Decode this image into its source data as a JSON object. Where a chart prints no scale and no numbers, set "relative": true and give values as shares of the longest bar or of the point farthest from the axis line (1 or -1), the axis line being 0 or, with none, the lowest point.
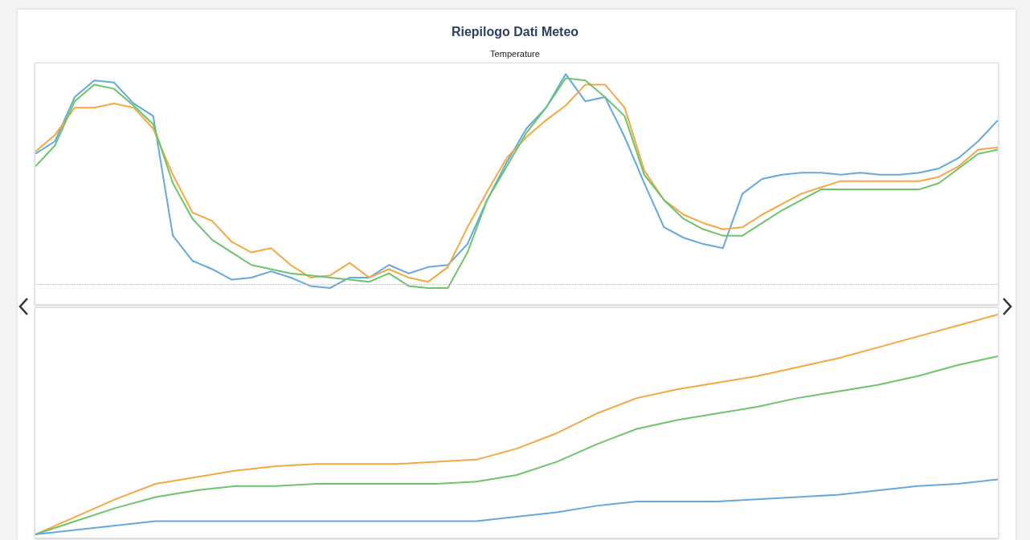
{
  "chart_data": [
    {
      "type": "line",
      "title": "Riepilogo Dati Meteo",
      "subtitle": "Temperature",
      "relative": true,
      "marker": "none",
      "line_style": "solid",
      "categories": [
        null,
        null,
        null,
        null,
        null,
        null,
        null,
        null,
        null,
        null,
        null,
        null,
        null,
        null,
        null,
        null,
        null,
        null,
        null,
        null,
        null,
        null,
        null,
        null,
        null,
        null,
        null,
        null,
        null,
        null,
        null,
        null,
        null,
        null,
        null,
        null,
        null,
        null,
        null,
        null,
        null,
        null,
        null,
        null,
        null,
        null,
        null,
        null,
        null,
        null
      ],
      "ref_lines": [
        {
          "axis": "y",
          "value": 0,
          "color": "#bbbbbb",
          "line_style": "dotted"
        }
      ],
      "series": [
        {
          "color": "#64a8e0",
          "values": [
            0.62,
            0.68,
            0.89,
            0.97,
            0.96,
            0.86,
            0.8,
            0.23,
            0.11,
            0.07,
            0.02,
            0.03,
            0.06,
            0.03,
            -0.01,
            -0.02,
            0.03,
            0.03,
            0.09,
            0.05,
            0.08,
            0.09,
            0.19,
            0.4,
            0.58,
            0.74,
            0.84,
            1,
            0.87,
            0.89,
            0.7,
            0.48,
            0.27,
            0.22,
            0.19,
            0.17,
            0.43,
            0.5,
            0.52,
            0.53,
            0.53,
            0.52,
            0.53,
            0.52,
            0.52,
            0.53,
            0.55,
            0.6,
            0.68,
            0.78
          ]
        },
        {
          "color": "#f5a742",
          "values": [
            0.63,
            0.71,
            0.84,
            0.84,
            0.86,
            0.84,
            0.74,
            0.52,
            0.34,
            0.3,
            0.2,
            0.15,
            0.17,
            0.09,
            0.03,
            0.04,
            0.1,
            0.03,
            0.07,
            0.03,
            0.01,
            0.08,
            0.27,
            0.44,
            0.6,
            0.7,
            0.78,
            0.85,
            0.95,
            0.95,
            0.84,
            0.54,
            0.4,
            0.33,
            0.29,
            0.26,
            0.27,
            0.33,
            0.38,
            0.43,
            0.46,
            0.49,
            0.49,
            0.49,
            0.49,
            0.49,
            0.51,
            0.56,
            0.64,
            0.65
          ]
        },
        {
          "color": "#6cc46c",
          "values": [
            0.56,
            0.66,
            0.87,
            0.95,
            0.93,
            0.85,
            0.76,
            0.48,
            0.31,
            0.21,
            0.15,
            0.09,
            0.07,
            0.05,
            0.04,
            0.03,
            0.02,
            0.01,
            0.05,
            -0.01,
            -0.02,
            -0.02,
            0.15,
            0.4,
            0.56,
            0.72,
            0.84,
            0.98,
            0.97,
            0.89,
            0.8,
            0.52,
            0.4,
            0.31,
            0.26,
            0.23,
            0.23,
            0.29,
            0.35,
            0.4,
            0.45,
            0.45,
            0.45,
            0.45,
            0.45,
            0.45,
            0.48,
            0.55,
            0.62,
            0.64
          ]
        }
      ]
    },
    {
      "type": "line",
      "relative": true,
      "marker": "none",
      "line_style": "solid",
      "categories": [
        null,
        null,
        null,
        null,
        null,
        null,
        null,
        null,
        null,
        null,
        null,
        null,
        null,
        null,
        null,
        null,
        null,
        null,
        null,
        null,
        null,
        null,
        null,
        null,
        null
      ],
      "series": [
        {
          "color": "#f5a742",
          "values": [
            0,
            0.08,
            0.16,
            0.23,
            0.26,
            0.29,
            0.31,
            0.32,
            0.32,
            0.32,
            0.33,
            0.34,
            0.39,
            0.46,
            0.55,
            0.62,
            0.66,
            0.69,
            0.72,
            0.76,
            0.8,
            0.85,
            0.9,
            0.95,
            1
          ]
        },
        {
          "color": "#6cc46c",
          "values": [
            0,
            0.06,
            0.12,
            0.17,
            0.2,
            0.22,
            0.22,
            0.23,
            0.23,
            0.23,
            0.23,
            0.24,
            0.27,
            0.33,
            0.41,
            0.48,
            0.52,
            0.55,
            0.58,
            0.62,
            0.65,
            0.68,
            0.72,
            0.77,
            0.81
          ]
        },
        {
          "color": "#64a8e0",
          "values": [
            0,
            0.02,
            0.04,
            0.06,
            0.06,
            0.06,
            0.06,
            0.06,
            0.06,
            0.06,
            0.06,
            0.06,
            0.08,
            0.1,
            0.13,
            0.15,
            0.15,
            0.15,
            0.16,
            0.17,
            0.18,
            0.2,
            0.22,
            0.23,
            0.25
          ]
        }
      ]
    }
  ]
}
